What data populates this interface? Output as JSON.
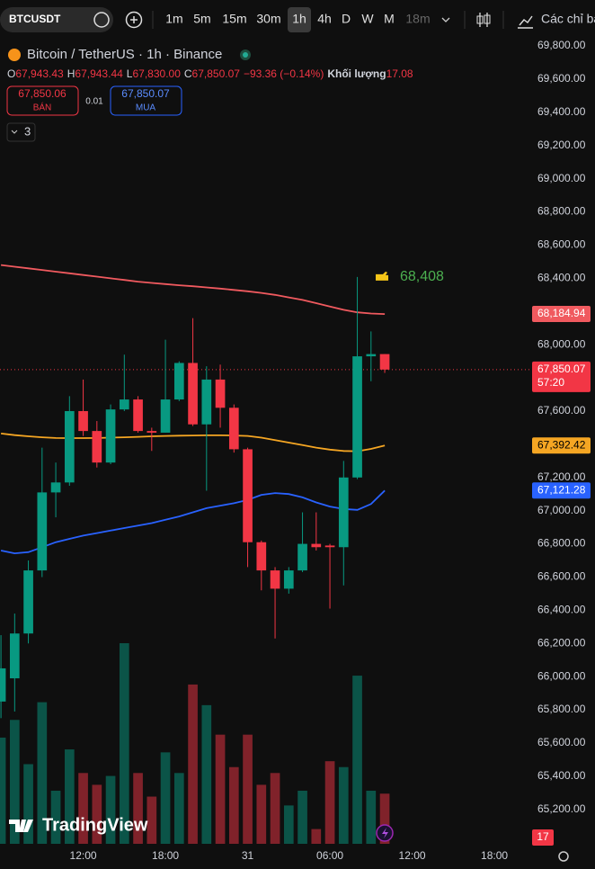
{
  "toolbar": {
    "symbol": "BTCUSDT",
    "intervals": [
      "1m",
      "5m",
      "15m",
      "30m",
      "1h",
      "4h",
      "D",
      "W",
      "M",
      "18m"
    ],
    "selected_interval": "1h",
    "indicators": "Các chỉ bá"
  },
  "legend": {
    "title": "Bitcoin / TetherUS · 1h · Binance",
    "o_label": "O",
    "o": "67,943.43",
    "h_label": "H",
    "h": "67,943.44",
    "l_label": "L",
    "l": "67,830.00",
    "c_label": "C",
    "c": "67,850.07",
    "change": "−93.36 (−0.14%)",
    "volume_label": "Khối lượng",
    "volume": "17.08"
  },
  "order": {
    "sell_price": "67,850.06",
    "sell_label": "BÁN",
    "quantity": "0.01",
    "buy_price": "67,850.07",
    "buy_label": "MUA"
  },
  "indicator_count": "3",
  "watermark": "TradingView",
  "chart_data": {
    "type": "candlestick",
    "x": [
      6,
      7,
      8,
      9,
      10,
      11,
      12,
      13,
      14,
      15,
      16,
      17,
      18,
      19,
      20,
      21,
      22,
      23,
      24,
      25,
      26,
      27,
      28,
      29,
      30,
      31,
      32,
      33,
      34
    ],
    "open": [
      65850,
      65990,
      66260,
      66640,
      67110,
      67170,
      67600,
      67480,
      67290,
      67610,
      67670,
      67480,
      67470,
      67670,
      67890,
      67520,
      67790,
      67620,
      67370,
      66810,
      66640,
      66530,
      66640,
      66800,
      66790,
      66780,
      67200,
      67930,
      67943.43
    ],
    "high": [
      66250,
      66380,
      66700,
      67380,
      67290,
      67690,
      67790,
      67540,
      67640,
      67940,
      67690,
      67500,
      68030,
      67900,
      68160,
      67870,
      67880,
      67640,
      67380,
      66820,
      66660,
      66660,
      66990,
      66990,
      66800,
      67300,
      68408,
      68080,
      67943.44
    ],
    "low": [
      65750,
      65790,
      66200,
      66600,
      66960,
      67150,
      67450,
      67260,
      67280,
      67600,
      67470,
      67360,
      67470,
      67660,
      67510,
      67120,
      67500,
      67350,
      66660,
      66520,
      66230,
      66500,
      66630,
      66760,
      66410,
      66550,
      67190,
      67780,
      67830
    ],
    "close": [
      66050,
      66260,
      66640,
      67110,
      67170,
      67600,
      67480,
      67290,
      67610,
      67670,
      67480,
      67470,
      67670,
      67890,
      67520,
      67790,
      67620,
      67370,
      66810,
      66640,
      66530,
      66640,
      66800,
      66780,
      66780,
      67200,
      67930,
      67943.43,
      67850.07
    ],
    "volume": [
      36,
      42,
      27,
      48,
      18,
      32,
      24,
      20,
      23,
      68,
      24,
      16,
      31,
      24,
      54,
      47,
      37,
      26,
      37,
      20,
      24,
      13,
      18,
      5,
      28,
      26,
      57,
      18,
      17
    ],
    "up_color": "#089981",
    "down_color": "#f23645",
    "lines": [
      {
        "color": "#f05a5f",
        "tag": "68,184.94",
        "values": [
          68480,
          68470,
          68460,
          68450,
          68440,
          68430,
          68420,
          68410,
          68400,
          68390,
          68380,
          68372,
          68365,
          68358,
          68352,
          68345,
          68338,
          68330,
          68322,
          68312,
          68300,
          68285,
          68270,
          68250,
          68230,
          68210,
          68195,
          68188,
          68184.94
        ]
      },
      {
        "color": "#f5a623",
        "tag": "67,392.42",
        "values": [
          67465,
          67455,
          67448,
          67442,
          67438,
          67437,
          67437,
          67438,
          67440,
          67442,
          67445,
          67448,
          67450,
          67452,
          67453,
          67454,
          67454,
          67453,
          67450,
          67440,
          67425,
          67410,
          67395,
          67380,
          67368,
          67360,
          67358,
          67372,
          67392.42
        ]
      },
      {
        "color": "#2962ff",
        "tag": "67,121.28",
        "values": [
          66760,
          66743,
          66750,
          66780,
          66810,
          66830,
          66850,
          66865,
          66880,
          66895,
          66910,
          66925,
          66945,
          66965,
          66990,
          67015,
          67030,
          67045,
          67065,
          67095,
          67106,
          67100,
          67080,
          67050,
          67025,
          67010,
          67005,
          67040,
          67121.28
        ]
      }
    ],
    "last_price": {
      "label": "67,850.07",
      "countdown": "57:20"
    },
    "high_marker": {
      "value": 68408,
      "label": "68,408"
    },
    "xlim": [
      5.93,
      44.62
    ],
    "xticks": [
      {
        "value": 12,
        "label": "12:00"
      },
      {
        "value": 18,
        "label": "18:00"
      },
      {
        "value": 24,
        "label": "31"
      },
      {
        "value": 30,
        "label": "06:00"
      },
      {
        "value": 36,
        "label": "12:00"
      },
      {
        "value": 42,
        "label": "18:00"
      }
    ],
    "ylim": [
      64982,
      69860
    ],
    "yticks": [
      {
        "value": 65200,
        "label": "65,200.00"
      },
      {
        "value": 65400,
        "label": "65,400.00"
      },
      {
        "value": 65600,
        "label": "65,600.00"
      },
      {
        "value": 65800,
        "label": "65,800.00"
      },
      {
        "value": 66000,
        "label": "66,000.00"
      },
      {
        "value": 66200,
        "label": "66,200.00"
      },
      {
        "value": 66400,
        "label": "66,400.00"
      },
      {
        "value": 66600,
        "label": "66,600.00"
      },
      {
        "value": 66800,
        "label": "66,800.00"
      },
      {
        "value": 67000,
        "label": "67,000.00"
      },
      {
        "value": 67200,
        "label": "67,200.00"
      },
      {
        "value": 67400,
        "label": "67,400.00"
      },
      {
        "value": 67600,
        "label": "67,600.00"
      },
      {
        "value": 67800,
        "label": "67,800.00"
      },
      {
        "value": 68000,
        "label": "68,000.00"
      },
      {
        "value": 68200,
        "label": "68,200.00"
      },
      {
        "value": 68400,
        "label": "68,400.00"
      },
      {
        "value": 68600,
        "label": "68,600.00"
      },
      {
        "value": 68800,
        "label": "68,800.00"
      },
      {
        "value": 69000,
        "label": "69,000.00"
      },
      {
        "value": 69200,
        "label": "69,200.00"
      },
      {
        "value": 69400,
        "label": "69,400.00"
      },
      {
        "value": 69600,
        "label": "69,600.00"
      },
      {
        "value": 69800,
        "label": "69,800.00"
      }
    ],
    "grid": false
  }
}
